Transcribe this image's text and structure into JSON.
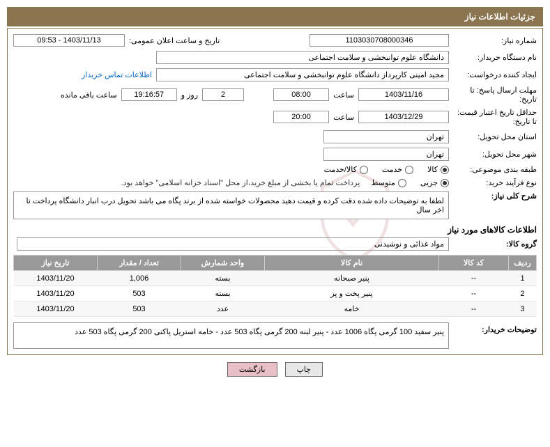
{
  "header": {
    "title": "جزئیات اطلاعات نیاز"
  },
  "form": {
    "need_no_label": "شماره نیاز:",
    "need_no": "1103030708000346",
    "announce_label": "تاریخ و ساعت اعلان عمومی:",
    "announce_value": "1403/11/13 - 09:53",
    "buyer_org_label": "نام دستگاه خریدار:",
    "buyer_org": "دانشگاه علوم توانبخشی و سلامت اجتماعی",
    "requester_label": "ایجاد کننده درخواست:",
    "requester": "مجید امینی کارپرداز دانشگاه علوم توانبخشی و سلامت اجتماعی",
    "contact_link": "اطلاعات تماس خریدار",
    "deadline_label": "مهلت ارسال پاسخ: تا تاریخ:",
    "deadline_date": "1403/11/16",
    "time_label": "ساعت",
    "deadline_time": "08:00",
    "remaining_days": "2",
    "and_label": "روز و",
    "remaining_time": "19:16:57",
    "remaining_suffix": "ساعت باقی مانده",
    "validity_label": "حداقل تاریخ اعتبار قیمت: تا تاریخ:",
    "validity_date": "1403/12/29",
    "validity_time": "20:00",
    "province_label": "استان محل تحویل:",
    "province": "تهران",
    "city_label": "شهر محل تحویل:",
    "city": "تهران",
    "category_label": "طبقه بندی موضوعی:",
    "cat_goods": "کالا",
    "cat_service": "خدمت",
    "cat_both": "کالا/خدمت",
    "process_label": "نوع فرآیند خرید:",
    "proc_partial": "جزیی",
    "proc_medium": "متوسط",
    "process_note": "پرداخت تمام یا بخشی از مبلغ خرید،از محل \"اسناد خزانه اسلامی\" خواهد بود.",
    "desc_label": "شرح کلی نیاز:",
    "desc_text": "لطفا به توضیحات داده شده دقت کرده و قیمت دهید محصولات خواسته شده از برند پگاه می باشد تحویل درب انبار دانشگاه  پرداخت تا اخر سال",
    "items_title": "اطلاعات کالاهای مورد نیاز",
    "group_label": "گروه کالا:",
    "group_value": "مواد غذائی و نوشیدنی",
    "buyer_notes_label": "توضیحات خریدار:",
    "buyer_notes": "پنیر سفید 100 گرمی پگاه 1006 عدد - پنیر لبنه 200 گرمی پگاه 503 عدد - خامه استریل پاکتی  200 گرمی پگاه 503 عدد"
  },
  "table": {
    "headers": {
      "row": "ردیف",
      "code": "کد کالا",
      "name": "نام کالا",
      "unit": "واحد شمارش",
      "qty": "تعداد / مقدار",
      "date": "تاریخ نیاز"
    },
    "rows": [
      {
        "row": "1",
        "code": "--",
        "name": "پنیر صبحانه",
        "unit": "بسته",
        "qty": "1,006",
        "date": "1403/11/20"
      },
      {
        "row": "2",
        "code": "--",
        "name": "پنیر پخت و پز",
        "unit": "بسته",
        "qty": "503",
        "date": "1403/11/20"
      },
      {
        "row": "3",
        "code": "--",
        "name": "خامه",
        "unit": "عدد",
        "qty": "503",
        "date": "1403/11/20"
      }
    ]
  },
  "buttons": {
    "print": "چاپ",
    "back": "بازگشت"
  },
  "watermark": {
    "text": "AriaTender.net"
  }
}
